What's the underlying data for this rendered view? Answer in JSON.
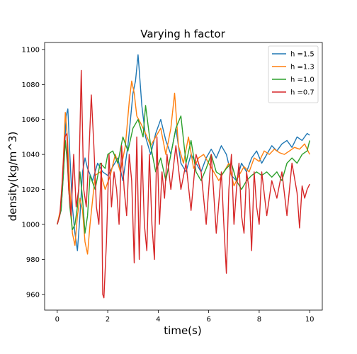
{
  "chart_data": {
    "type": "line",
    "title": "Varying h factor",
    "xlabel": "time(s)",
    "ylabel": "density(kg/m^3)",
    "xlim": [
      -0.5,
      10.5
    ],
    "ylim": [
      951,
      1104
    ],
    "xticks": [
      0,
      2,
      4,
      6,
      8,
      10
    ],
    "yticks": [
      960,
      980,
      1000,
      1020,
      1040,
      1060,
      1080,
      1100
    ],
    "grid": false,
    "legend_position": "top-right",
    "series": [
      {
        "name": "h =1.5",
        "color": "#1f77b4",
        "x": [
          0,
          0.15,
          0.25,
          0.35,
          0.42,
          0.5,
          0.6,
          0.7,
          0.8,
          0.9,
          1.0,
          1.1,
          1.2,
          1.4,
          1.6,
          1.8,
          2.0,
          2.2,
          2.4,
          2.6,
          2.8,
          2.9,
          3.0,
          3.1,
          3.2,
          3.25,
          3.35,
          3.5,
          3.7,
          3.9,
          4.1,
          4.3,
          4.5,
          4.7,
          4.9,
          5.1,
          5.3,
          5.5,
          5.7,
          5.9,
          6.1,
          6.3,
          6.5,
          6.7,
          6.9,
          7.1,
          7.3,
          7.5,
          7.7,
          7.9,
          8.1,
          8.3,
          8.5,
          8.7,
          8.9,
          9.1,
          9.3,
          9.5,
          9.7,
          9.9,
          10.0
        ],
        "y": [
          1000,
          1008,
          1030,
          1062,
          1066,
          1040,
          1010,
          995,
          985,
          1005,
          1030,
          1038,
          1032,
          1025,
          1035,
          1030,
          1028,
          1033,
          1038,
          1025,
          1045,
          1060,
          1075,
          1082,
          1097,
          1088,
          1068,
          1050,
          1040,
          1052,
          1060,
          1048,
          1040,
          1055,
          1035,
          1030,
          1040,
          1035,
          1030,
          1038,
          1043,
          1038,
          1045,
          1040,
          1028,
          1025,
          1035,
          1030,
          1038,
          1042,
          1035,
          1040,
          1045,
          1042,
          1046,
          1048,
          1044,
          1050,
          1048,
          1052,
          1051
        ]
      },
      {
        "name": "h =1.3",
        "color": "#ff7f0e",
        "x": [
          0,
          0.15,
          0.25,
          0.32,
          0.4,
          0.5,
          0.6,
          0.7,
          0.8,
          0.9,
          1.0,
          1.1,
          1.2,
          1.3,
          1.5,
          1.7,
          1.9,
          2.1,
          2.3,
          2.5,
          2.7,
          2.85,
          2.95,
          3.05,
          3.15,
          3.3,
          3.5,
          3.7,
          3.9,
          4.1,
          4.3,
          4.5,
          4.65,
          4.8,
          5.0,
          5.2,
          5.4,
          5.6,
          5.8,
          6.0,
          6.2,
          6.4,
          6.6,
          6.8,
          7.0,
          7.2,
          7.4,
          7.6,
          7.8,
          8.0,
          8.2,
          8.4,
          8.6,
          8.8,
          9.0,
          9.2,
          9.4,
          9.6,
          9.8,
          10.0
        ],
        "y": [
          1000,
          1010,
          1040,
          1064,
          1050,
          1020,
          995,
          988,
          1005,
          1015,
          1008,
          990,
          983,
          1000,
          1028,
          1030,
          1020,
          1028,
          1040,
          1030,
          1045,
          1070,
          1082,
          1075,
          1062,
          1058,
          1052,
          1045,
          1050,
          1055,
          1040,
          1055,
          1075,
          1045,
          1035,
          1050,
          1032,
          1038,
          1040,
          1035,
          1030,
          1025,
          1030,
          1035,
          1022,
          1028,
          1033,
          1030,
          1038,
          1036,
          1042,
          1040,
          1043,
          1041,
          1040,
          1042,
          1044,
          1043,
          1046,
          1040
        ]
      },
      {
        "name": "h =1.0",
        "color": "#2ca02c",
        "x": [
          0,
          0.15,
          0.25,
          0.32,
          0.4,
          0.5,
          0.6,
          0.7,
          0.8,
          0.9,
          1.0,
          1.1,
          1.2,
          1.3,
          1.5,
          1.7,
          1.9,
          2.0,
          2.2,
          2.4,
          2.6,
          2.8,
          3.0,
          3.2,
          3.4,
          3.5,
          3.7,
          3.9,
          4.1,
          4.3,
          4.5,
          4.7,
          4.9,
          5.1,
          5.3,
          5.5,
          5.7,
          5.9,
          6.1,
          6.3,
          6.5,
          6.7,
          6.9,
          7.1,
          7.3,
          7.5,
          7.7,
          7.9,
          8.1,
          8.3,
          8.5,
          8.7,
          8.9,
          9.1,
          9.3,
          9.5,
          9.7,
          9.9,
          10.0
        ],
        "y": [
          1000,
          1008,
          1030,
          1048,
          1035,
          1010,
          997,
          1000,
          1010,
          1030,
          1015,
          995,
          1005,
          1028,
          1020,
          1035,
          1032,
          1040,
          1042,
          1035,
          1050,
          1042,
          1055,
          1060,
          1050,
          1068,
          1045,
          1030,
          1038,
          1025,
          1040,
          1055,
          1062,
          1035,
          1048,
          1030,
          1025,
          1032,
          1040,
          1030,
          1028,
          1032,
          1035,
          1025,
          1020,
          1025,
          1028,
          1030,
          1028,
          1030,
          1027,
          1030,
          1025,
          1035,
          1038,
          1035,
          1040,
          1042,
          1048
        ]
      },
      {
        "name": "h =0.7",
        "color": "#d62728",
        "x": [
          0,
          0.1,
          0.2,
          0.3,
          0.38,
          0.45,
          0.55,
          0.65,
          0.75,
          0.85,
          0.95,
          1.05,
          1.15,
          1.25,
          1.35,
          1.45,
          1.55,
          1.65,
          1.75,
          1.8,
          1.85,
          1.95,
          2.05,
          2.15,
          2.25,
          2.35,
          2.45,
          2.55,
          2.65,
          2.75,
          2.85,
          2.95,
          3.05,
          3.15,
          3.25,
          3.35,
          3.45,
          3.55,
          3.65,
          3.75,
          3.85,
          3.95,
          4.05,
          4.15,
          4.25,
          4.35,
          4.5,
          4.7,
          4.9,
          5.1,
          5.3,
          5.5,
          5.7,
          5.9,
          6.1,
          6.3,
          6.5,
          6.6,
          6.7,
          6.8,
          6.9,
          7.0,
          7.1,
          7.2,
          7.3,
          7.4,
          7.5,
          7.6,
          7.7,
          7.8,
          7.9,
          8.0,
          8.1,
          8.3,
          8.5,
          8.7,
          8.9,
          9.1,
          9.3,
          9.5,
          9.6,
          9.7,
          9.8,
          9.9,
          10.0
        ],
        "y": [
          1000,
          1005,
          1025,
          1050,
          1052,
          1020,
          1005,
          1040,
          1010,
          1020,
          1088,
          1020,
          1010,
          1040,
          1074,
          1045,
          1010,
          1000,
          1035,
          960,
          958,
          990,
          1040,
          1010,
          1030,
          1020,
          1000,
          1045,
          1020,
          1005,
          1040,
          1025,
          978,
          1050,
          980,
          1045,
          1000,
          985,
          1040,
          1000,
          980,
          1050,
          1000,
          1030,
          1015,
          1040,
          1020,
          1045,
          1020,
          1035,
          1008,
          1040,
          1030,
          1000,
          1040,
          995,
          1030,
          1000,
          972,
          1020,
          1040,
          1000,
          1020,
          1035,
          1005,
          995,
          1030,
          1020,
          985,
          1030,
          1010,
          1000,
          1030,
          1005,
          1025,
          1015,
          1030,
          1005,
          1035,
          1018,
          998,
          1022,
          1015,
          1020,
          1023
        ]
      }
    ]
  }
}
